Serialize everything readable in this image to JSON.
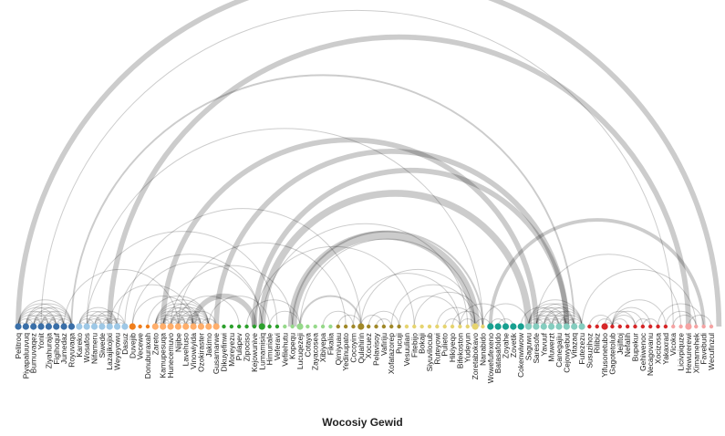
{
  "title": "Wocosiy Gewid",
  "colors": {
    "arc": "#000000",
    "background": "#ffffff",
    "groups": [
      "#3a6fa8",
      "#9ec8e6",
      "#f07e1b",
      "#ffae6b",
      "#2ca02c",
      "#96d98a",
      "#a08828",
      "#e6d470",
      "#17a090",
      "#85cdbf",
      "#d62728",
      "#f5a3a3"
    ]
  },
  "nodes": [
    {
      "label": "Pelitroq",
      "group": 0,
      "size": 1
    },
    {
      "label": "Piyapaluuvuq",
      "group": 0,
      "size": 1
    },
    {
      "label": "Bumuvaqez",
      "group": 0,
      "size": 1
    },
    {
      "label": "Yonit",
      "group": 0,
      "size": 1
    },
    {
      "label": "Ziyahuraja",
      "group": 0,
      "size": 1
    },
    {
      "label": "Figihoquf",
      "group": 0,
      "size": 1
    },
    {
      "label": "Jumedaz",
      "group": 0,
      "size": 1
    },
    {
      "label": "Royuvaqa",
      "group": 0,
      "size": 1
    },
    {
      "label": "Kareko",
      "group": 1,
      "size": 1
    },
    {
      "label": "Wosafos",
      "group": 1,
      "size": 1
    },
    {
      "label": "Nifameru",
      "group": 1,
      "size": 1
    },
    {
      "label": "Siwede",
      "group": 1,
      "size": 1
    },
    {
      "label": "Lazajikojixi",
      "group": 1,
      "size": 1
    },
    {
      "label": "Weyeyowu",
      "group": 1,
      "size": 1
    },
    {
      "label": "Dasuz",
      "group": 1,
      "size": 1
    },
    {
      "label": "Duvejib",
      "group": 2,
      "size": 1
    },
    {
      "label": "Vecewe",
      "group": 2,
      "size": 0
    },
    {
      "label": "Donuburaxah",
      "group": 2,
      "size": 0
    },
    {
      "label": "Zareto",
      "group": 3,
      "size": 1
    },
    {
      "label": "Kamupesuqa",
      "group": 3,
      "size": 1
    },
    {
      "label": "Hunecemuvo",
      "group": 3,
      "size": 1
    },
    {
      "label": "Nijibe",
      "group": 3,
      "size": 1
    },
    {
      "label": "Lavehuso",
      "group": 3,
      "size": 1
    },
    {
      "label": "Vinowiyida",
      "group": 3,
      "size": 1
    },
    {
      "label": "Ozokiraster",
      "group": 3,
      "size": 1
    },
    {
      "label": "Jakimo",
      "group": 3,
      "size": 1
    },
    {
      "label": "Gusamarwe",
      "group": 3,
      "size": 1
    },
    {
      "label": "Dikuyefinwi",
      "group": 4,
      "size": 0
    },
    {
      "label": "Moreyezu",
      "group": 4,
      "size": 0
    },
    {
      "label": "Pulapev",
      "group": 4,
      "size": 0
    },
    {
      "label": "Zipociso",
      "group": 4,
      "size": 0
    },
    {
      "label": "Kejowunive",
      "group": 4,
      "size": 0
    },
    {
      "label": "Lumamisiq",
      "group": 4,
      "size": 1
    },
    {
      "label": "Himuriale",
      "group": 4,
      "size": 0
    },
    {
      "label": "Veferavi",
      "group": 4,
      "size": 0
    },
    {
      "label": "Vefilehutu",
      "group": 5,
      "size": 0
    },
    {
      "label": "Kopequ",
      "group": 5,
      "size": 0
    },
    {
      "label": "Lucuqezeji",
      "group": 5,
      "size": 1
    },
    {
      "label": "Cotaya",
      "group": 5,
      "size": 0
    },
    {
      "label": "Zayacosea",
      "group": 5,
      "size": 0
    },
    {
      "label": "Xibiyepa",
      "group": 5,
      "size": 0
    },
    {
      "label": "Fikalia",
      "group": 5,
      "size": 0
    },
    {
      "label": "Qimiyuau",
      "group": 6,
      "size": 0
    },
    {
      "label": "Yedinupato",
      "group": 6,
      "size": 0
    },
    {
      "label": "Cocoyim",
      "group": 6,
      "size": 0
    },
    {
      "label": "Qulahirin",
      "group": 6,
      "size": 1
    },
    {
      "label": "Xocuez",
      "group": 6,
      "size": 0
    },
    {
      "label": "Pelavisoy",
      "group": 6,
      "size": 0
    },
    {
      "label": "Vafiriju",
      "group": 6,
      "size": 0
    },
    {
      "label": "Xofatazorep",
      "group": 6,
      "size": 0
    },
    {
      "label": "Pucuji",
      "group": 6,
      "size": 0
    },
    {
      "label": "Vesuulian",
      "group": 7,
      "size": 0
    },
    {
      "label": "Fitebijo",
      "group": 7,
      "size": 0
    },
    {
      "label": "Bokaji",
      "group": 7,
      "size": 0
    },
    {
      "label": "Siyuvilocub",
      "group": 7,
      "size": 0
    },
    {
      "label": "Ruteyowi",
      "group": 7,
      "size": 0
    },
    {
      "label": "Pulieto",
      "group": 7,
      "size": 0
    },
    {
      "label": "Hikiyeqo",
      "group": 7,
      "size": 0
    },
    {
      "label": "Bifekoston",
      "group": 7,
      "size": 0
    },
    {
      "label": "Yudeyun",
      "group": 7,
      "size": 0
    },
    {
      "label": "Zoretabokavo",
      "group": 7,
      "size": 1
    },
    {
      "label": "Nanabido",
      "group": 7,
      "size": 0
    },
    {
      "label": "Wowefufexeno",
      "group": 8,
      "size": 1
    },
    {
      "label": "Batasafoldo",
      "group": 8,
      "size": 1
    },
    {
      "label": "Zoyahe",
      "group": 8,
      "size": 1
    },
    {
      "label": "Zovetik",
      "group": 8,
      "size": 1
    },
    {
      "label": "Cokenwiwow",
      "group": 8,
      "size": 1
    },
    {
      "label": "Saguwu",
      "group": 9,
      "size": 1
    },
    {
      "label": "Saresofe",
      "group": 9,
      "size": 1
    },
    {
      "label": "Yavuuf",
      "group": 9,
      "size": 1
    },
    {
      "label": "Muwerzt",
      "group": 9,
      "size": 1
    },
    {
      "label": "Canegajiu",
      "group": 9,
      "size": 1
    },
    {
      "label": "Cejowyebut",
      "group": 9,
      "size": 1
    },
    {
      "label": "Vitazaq",
      "group": 9,
      "size": 1
    },
    {
      "label": "Futezezu",
      "group": 9,
      "size": 1
    },
    {
      "label": "Susuzihoz",
      "group": 10,
      "size": 0
    },
    {
      "label": "Rilibiz",
      "group": 10,
      "size": 0
    },
    {
      "label": "Yifusonetubo",
      "group": 10,
      "size": 1
    },
    {
      "label": "Gagotetolub",
      "group": 10,
      "size": 0
    },
    {
      "label": "Jejiftoj",
      "group": 10,
      "size": 0
    },
    {
      "label": "Nefalih",
      "group": 10,
      "size": 0
    },
    {
      "label": "Bupekur",
      "group": 10,
      "size": 0
    },
    {
      "label": "Gehiwenoc",
      "group": 10,
      "size": 0
    },
    {
      "label": "Necagovanu",
      "group": 10,
      "size": 0
    },
    {
      "label": "Xocizosa",
      "group": 10,
      "size": 0
    },
    {
      "label": "Yakaxrad",
      "group": 10,
      "size": 0
    },
    {
      "label": "Vicoka",
      "group": 11,
      "size": 0
    },
    {
      "label": "Licivpiquze",
      "group": 11,
      "size": 0
    },
    {
      "label": "Hewurerewi",
      "group": 11,
      "size": 1
    },
    {
      "label": "Ximamehek",
      "group": 11,
      "size": 0
    },
    {
      "label": "Favebudi",
      "group": 11,
      "size": 0
    },
    {
      "label": "Wecufinzul",
      "group": 11,
      "size": 0
    }
  ],
  "links": [
    [
      0,
      1,
      1
    ],
    [
      0,
      2,
      1
    ],
    [
      0,
      3,
      1
    ],
    [
      0,
      4,
      1
    ],
    [
      0,
      5,
      1
    ],
    [
      0,
      6,
      1
    ],
    [
      0,
      7,
      1
    ],
    [
      1,
      2,
      1
    ],
    [
      1,
      3,
      1
    ],
    [
      1,
      4,
      1
    ],
    [
      1,
      5,
      1
    ],
    [
      1,
      6,
      1
    ],
    [
      1,
      7,
      1
    ],
    [
      2,
      3,
      1
    ],
    [
      2,
      4,
      1
    ],
    [
      2,
      5,
      1
    ],
    [
      2,
      6,
      1
    ],
    [
      2,
      7,
      1
    ],
    [
      3,
      4,
      1
    ],
    [
      3,
      5,
      1
    ],
    [
      3,
      6,
      1
    ],
    [
      3,
      7,
      1
    ],
    [
      4,
      5,
      1
    ],
    [
      4,
      6,
      1
    ],
    [
      4,
      7,
      1
    ],
    [
      5,
      6,
      1
    ],
    [
      5,
      7,
      1
    ],
    [
      6,
      7,
      1
    ],
    [
      8,
      9,
      1
    ],
    [
      8,
      10,
      1
    ],
    [
      8,
      11,
      1
    ],
    [
      8,
      12,
      1
    ],
    [
      8,
      13,
      1
    ],
    [
      9,
      10,
      1
    ],
    [
      9,
      11,
      1
    ],
    [
      9,
      12,
      1
    ],
    [
      9,
      13,
      1
    ],
    [
      10,
      11,
      1
    ],
    [
      10,
      12,
      1
    ],
    [
      10,
      13,
      1
    ],
    [
      11,
      12,
      1
    ],
    [
      11,
      13,
      1
    ],
    [
      12,
      13,
      1
    ],
    [
      12,
      14,
      1
    ],
    [
      13,
      14,
      1
    ],
    [
      10,
      14,
      1
    ],
    [
      18,
      19,
      1
    ],
    [
      18,
      20,
      1
    ],
    [
      18,
      21,
      1
    ],
    [
      18,
      22,
      1
    ],
    [
      18,
      23,
      1
    ],
    [
      18,
      24,
      1
    ],
    [
      18,
      25,
      1
    ],
    [
      19,
      20,
      1
    ],
    [
      19,
      21,
      1
    ],
    [
      19,
      22,
      1
    ],
    [
      19,
      23,
      1
    ],
    [
      19,
      24,
      1
    ],
    [
      19,
      25,
      1
    ],
    [
      20,
      21,
      1
    ],
    [
      20,
      22,
      1
    ],
    [
      20,
      23,
      1
    ],
    [
      20,
      24,
      1
    ],
    [
      20,
      25,
      1
    ],
    [
      21,
      22,
      1
    ],
    [
      21,
      23,
      1
    ],
    [
      21,
      24,
      1
    ],
    [
      21,
      25,
      1
    ],
    [
      22,
      23,
      1
    ],
    [
      22,
      24,
      1
    ],
    [
      22,
      25,
      1
    ],
    [
      23,
      24,
      1
    ],
    [
      23,
      25,
      1
    ],
    [
      24,
      25,
      1
    ],
    [
      22,
      26,
      1
    ],
    [
      24,
      26,
      1
    ],
    [
      67,
      68,
      1
    ],
    [
      67,
      69,
      1
    ],
    [
      67,
      70,
      1
    ],
    [
      67,
      71,
      1
    ],
    [
      67,
      72,
      1
    ],
    [
      67,
      73,
      1
    ],
    [
      67,
      74,
      1
    ],
    [
      68,
      69,
      1
    ],
    [
      68,
      70,
      1
    ],
    [
      68,
      71,
      1
    ],
    [
      68,
      72,
      1
    ],
    [
      68,
      73,
      1
    ],
    [
      68,
      74,
      1
    ],
    [
      69,
      70,
      1
    ],
    [
      69,
      71,
      1
    ],
    [
      69,
      72,
      1
    ],
    [
      69,
      73,
      1
    ],
    [
      69,
      74,
      1
    ],
    [
      70,
      71,
      1
    ],
    [
      70,
      72,
      1
    ],
    [
      70,
      73,
      1
    ],
    [
      70,
      74,
      1
    ],
    [
      71,
      72,
      1
    ],
    [
      71,
      73,
      1
    ],
    [
      71,
      74,
      1
    ],
    [
      72,
      73,
      1
    ],
    [
      72,
      74,
      1
    ],
    [
      73,
      74,
      1
    ],
    [
      0,
      92,
      6
    ],
    [
      3,
      86,
      1
    ],
    [
      7,
      73,
      2
    ],
    [
      9,
      61,
      1
    ],
    [
      12,
      88,
      6
    ],
    [
      12,
      23,
      1
    ],
    [
      14,
      45,
      1
    ],
    [
      15,
      32,
      1
    ],
    [
      15,
      23,
      1
    ],
    [
      17,
      25,
      1
    ],
    [
      19,
      68,
      6
    ],
    [
      21,
      43,
      1
    ],
    [
      23,
      31,
      6
    ],
    [
      26,
      72,
      6
    ],
    [
      31,
      72,
      6
    ],
    [
      31,
      52,
      1
    ],
    [
      32,
      67,
      8
    ],
    [
      32,
      59,
      1
    ],
    [
      36,
      60,
      10
    ],
    [
      36,
      61,
      2
    ],
    [
      37,
      45,
      2
    ],
    [
      37,
      60,
      1
    ],
    [
      45,
      48,
      1
    ],
    [
      45,
      60,
      1
    ],
    [
      46,
      50,
      1
    ],
    [
      47,
      49,
      1
    ],
    [
      44,
      58,
      1
    ],
    [
      49,
      60,
      1
    ],
    [
      50,
      58,
      1
    ],
    [
      52,
      61,
      1
    ],
    [
      55,
      60,
      1
    ],
    [
      56,
      58,
      1
    ],
    [
      58,
      60,
      1
    ],
    [
      57,
      61,
      1
    ],
    [
      60,
      62,
      1
    ],
    [
      62,
      64,
      1
    ],
    [
      63,
      65,
      1
    ],
    [
      62,
      90,
      4
    ],
    [
      61,
      67,
      1
    ],
    [
      58,
      64,
      1
    ],
    [
      66,
      71,
      1
    ],
    [
      78,
      79,
      1
    ],
    [
      78,
      80,
      1
    ],
    [
      78,
      81,
      1
    ],
    [
      78,
      82,
      1
    ],
    [
      78,
      83,
      1
    ],
    [
      77,
      78,
      1
    ],
    [
      76,
      78,
      1
    ],
    [
      75,
      78,
      1
    ],
    [
      78,
      85,
      1
    ],
    [
      77,
      81,
      1
    ],
    [
      81,
      83,
      1
    ],
    [
      82,
      84,
      1
    ],
    [
      84,
      90,
      1
    ],
    [
      86,
      89,
      1
    ],
    [
      85,
      89,
      1
    ],
    [
      88,
      91,
      1
    ],
    [
      74,
      89,
      1
    ],
    [
      68,
      87,
      1
    ],
    [
      30,
      37,
      1
    ],
    [
      40,
      44,
      1
    ],
    [
      42,
      45,
      1
    ],
    [
      33,
      37,
      1
    ],
    [
      13,
      32,
      1
    ],
    [
      9,
      34,
      1
    ],
    [
      6,
      21,
      1
    ],
    [
      21,
      29,
      1
    ],
    [
      25,
      33,
      1
    ],
    [
      20,
      36,
      1
    ]
  ]
}
